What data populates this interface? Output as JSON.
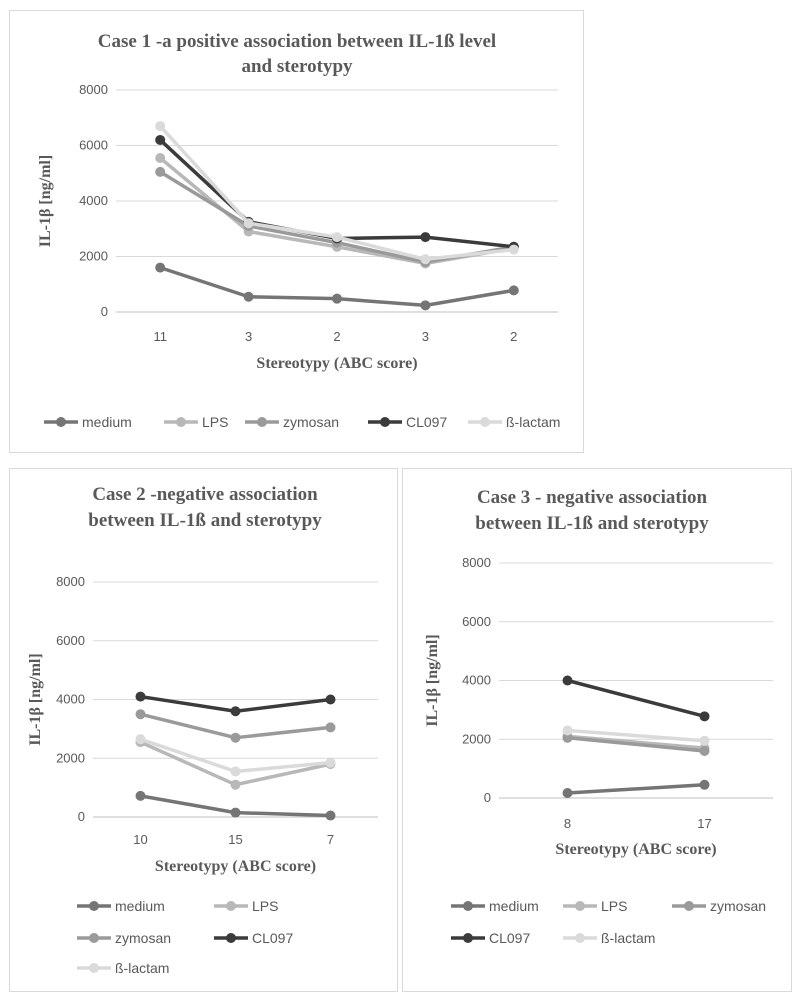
{
  "chart_data": [
    {
      "type": "line",
      "title_lines": [
        "Case 1 -a positive association between IL-1ß level",
        "and sterotypy"
      ],
      "xlabel": "Stereotypy (ABC score)",
      "ylabel": "IL-1β [ng/ml]",
      "categories": [
        "11",
        "3",
        "2",
        "3",
        "2"
      ],
      "ylim": [
        0,
        8000
      ],
      "yticks": [
        "0",
        "2000",
        "4000",
        "6000",
        "8000"
      ],
      "grid": true,
      "legend_position": "bottom",
      "series": [
        {
          "name": "medium",
          "color": "#757575",
          "values": [
            1600,
            550,
            480,
            240,
            780
          ]
        },
        {
          "name": "LPS",
          "color": "#b8b8b8",
          "values": [
            5550,
            2900,
            2350,
            1750,
            2300
          ]
        },
        {
          "name": "zymosan",
          "color": "#9a9a9a",
          "values": [
            5050,
            3100,
            2500,
            1800,
            2350
          ]
        },
        {
          "name": "CL097",
          "color": "#3b3b3b",
          "values": [
            6200,
            3250,
            2650,
            2700,
            2350
          ]
        },
        {
          "name": "ß-lactam",
          "color": "#dadada",
          "values": [
            6700,
            3200,
            2700,
            1900,
            2250
          ]
        }
      ]
    },
    {
      "type": "line",
      "title_lines": [
        "Case 2 -negative association",
        "between IL-1ß and sterotypy"
      ],
      "xlabel": "Stereotypy (ABC score)",
      "ylabel": "IL-1β [ng/ml]",
      "categories": [
        "10",
        "15",
        "7"
      ],
      "ylim": [
        0,
        8000
      ],
      "yticks": [
        "0",
        "2000",
        "4000",
        "6000",
        "8000"
      ],
      "grid": true,
      "legend_position": "bottom",
      "series": [
        {
          "name": "medium",
          "color": "#757575",
          "values": [
            720,
            150,
            50
          ]
        },
        {
          "name": "LPS",
          "color": "#b8b8b8",
          "values": [
            2550,
            1100,
            1800
          ]
        },
        {
          "name": "zymosan",
          "color": "#9a9a9a",
          "values": [
            3500,
            2700,
            3050
          ]
        },
        {
          "name": "CL097",
          "color": "#3b3b3b",
          "values": [
            4100,
            3600,
            4000
          ]
        },
        {
          "name": "ß-lactam",
          "color": "#dadada",
          "values": [
            2650,
            1550,
            1850
          ]
        }
      ]
    },
    {
      "type": "line",
      "title_lines": [
        "Case 3 - negative association",
        "between IL-1ß and sterotypy"
      ],
      "xlabel": "Stereotypy (ABC score)",
      "ylabel": "IL-1β [ng/ml]",
      "categories": [
        "8",
        "17"
      ],
      "ylim": [
        0,
        8000
      ],
      "yticks": [
        "0",
        "2000",
        "4000",
        "6000",
        "8000"
      ],
      "grid": true,
      "legend_position": "bottom",
      "series": [
        {
          "name": "medium",
          "color": "#757575",
          "values": [
            170,
            450
          ]
        },
        {
          "name": "LPS",
          "color": "#b8b8b8",
          "values": [
            2100,
            1700
          ]
        },
        {
          "name": "zymosan",
          "color": "#9a9a9a",
          "values": [
            2050,
            1600
          ]
        },
        {
          "name": "CL097",
          "color": "#3b3b3b",
          "values": [
            4000,
            2780
          ]
        },
        {
          "name": "ß-lactam",
          "color": "#dadada",
          "values": [
            2300,
            1950
          ]
        }
      ]
    }
  ]
}
